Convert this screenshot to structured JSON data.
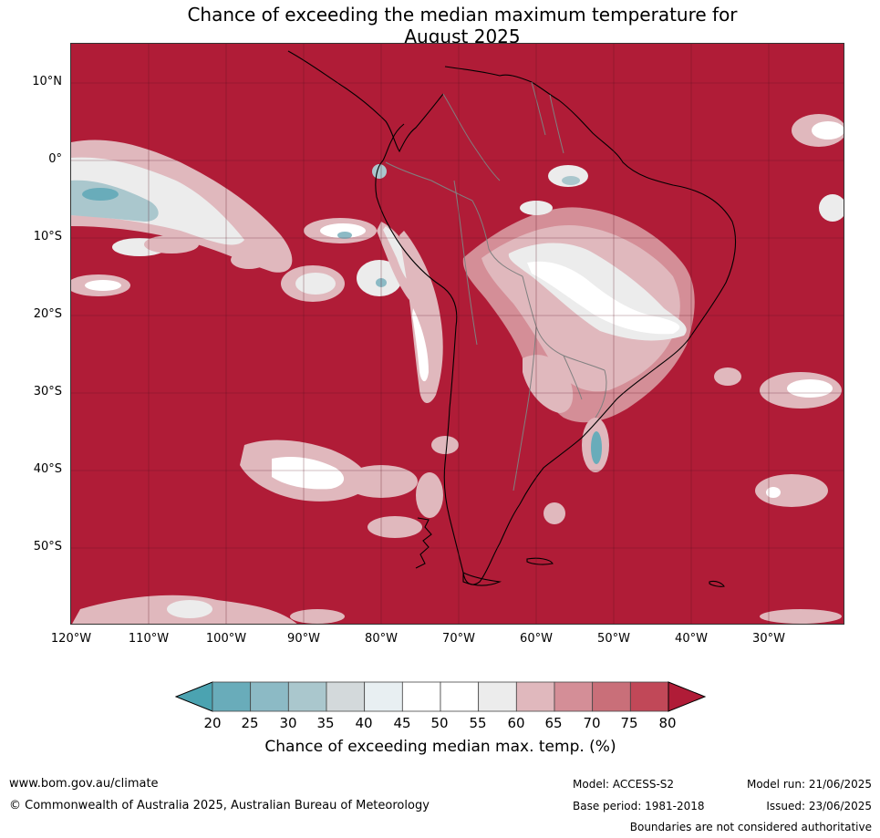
{
  "title_line1": "Chance of exceeding the median maximum temperature for",
  "title_line2": "August 2025",
  "lat_labels": [
    "10°N",
    "0°",
    "10°S",
    "20°S",
    "30°S",
    "40°S",
    "50°S"
  ],
  "lon_labels": [
    "120°W",
    "110°W",
    "100°W",
    "90°W",
    "80°W",
    "70°W",
    "60°W",
    "50°W",
    "40°W",
    "30°W"
  ],
  "colorbar": {
    "ticks": [
      "20",
      "25",
      "30",
      "35",
      "40",
      "45",
      "50",
      "55",
      "60",
      "65",
      "70",
      "75",
      "80"
    ],
    "label": "Chance of exceeding median max. temp. (%)",
    "colors": [
      "#4ba3b1",
      "#69acba",
      "#8cbac5",
      "#aac7cd",
      "#d3d9db",
      "#e8eff2",
      "#ffffff",
      "#ffffff",
      "#ececec",
      "#e0b8bd",
      "#d48e97",
      "#c96f79",
      "#c14858",
      "#b01c37"
    ]
  },
  "map_colors": {
    "background": "#b01c37",
    "land_border": "#000000",
    "country_border": "#808080",
    "grid": "#5a1020"
  },
  "footer": {
    "website": "www.bom.gov.au/climate",
    "copyright": "© Commonwealth of Australia 2025, Australian Bureau of Meteorology",
    "model": "Model: ACCESS-S2",
    "base_period": "Base period: 1981-2018",
    "model_run": "Model run: 21/06/2025",
    "issued": "Issued: 23/06/2025",
    "disclaimer": "Boundaries are not considered authoritative"
  }
}
